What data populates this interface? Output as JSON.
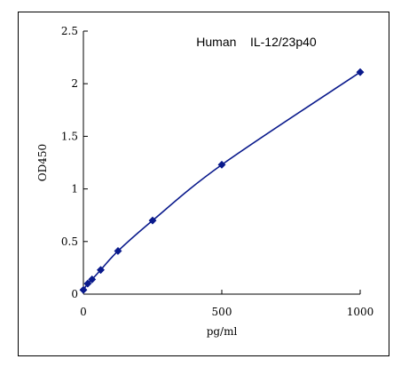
{
  "chart_data": {
    "type": "scatter",
    "title": "Human    IL-12/23p40",
    "xlabel": "pg/ml",
    "ylabel": "OD450",
    "xlim": [
      0,
      1000
    ],
    "ylim": [
      0,
      2.5
    ],
    "x_ticks": [
      0,
      500,
      1000
    ],
    "x_tick_labels": [
      "0",
      "500",
      "1000"
    ],
    "y_ticks": [
      0,
      0.5,
      1,
      1.5,
      2,
      2.5
    ],
    "y_tick_labels": [
      "0",
      "0.5",
      "1",
      "1.5",
      "2",
      "2.5"
    ],
    "grid": false,
    "legend": false,
    "series": [
      {
        "x": [
          0,
          15.6,
          31.25,
          62.5,
          125,
          250,
          500,
          1000
        ],
        "y": [
          0.04,
          0.1,
          0.14,
          0.23,
          0.41,
          0.7,
          1.23,
          2.11
        ],
        "marker": "diamond",
        "line": "smooth"
      }
    ],
    "colors": {
      "series": "#0a1a8c",
      "axis": "#000000"
    }
  }
}
